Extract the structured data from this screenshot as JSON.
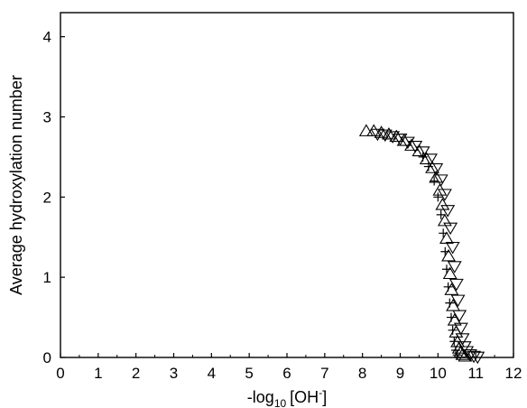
{
  "chart_data": {
    "type": "scatter",
    "title": "",
    "xlabel_parts": {
      "prefix": "-log",
      "subscript": "10",
      "bracket_open": "[OH",
      "superscript": "-",
      "bracket_close": "]"
    },
    "ylabel": "Average hydroxylation number",
    "xlim": [
      0,
      12
    ],
    "ylim": [
      0,
      4.3
    ],
    "x_ticks": [
      0,
      1,
      2,
      3,
      4,
      5,
      6,
      7,
      8,
      9,
      10,
      11,
      12
    ],
    "y_ticks": [
      0,
      1,
      2,
      3,
      4
    ],
    "grid": false,
    "legend": "none",
    "series": [
      {
        "marker": "triangle-up",
        "x": [
          8.1,
          8.3,
          8.5,
          8.7,
          8.9,
          9.1,
          9.3,
          9.5,
          9.7,
          9.85,
          9.95,
          10.05,
          10.12,
          10.18,
          10.23,
          10.28,
          10.32,
          10.36,
          10.4,
          10.44,
          10.48,
          10.52,
          10.56,
          10.6,
          10.65,
          10.72
        ],
        "y": [
          2.82,
          2.82,
          2.8,
          2.78,
          2.75,
          2.7,
          2.64,
          2.57,
          2.47,
          2.36,
          2.24,
          2.08,
          1.9,
          1.7,
          1.48,
          1.26,
          1.04,
          0.84,
          0.64,
          0.46,
          0.31,
          0.19,
          0.11,
          0.06,
          0.03,
          0.01
        ]
      },
      {
        "marker": "triangle-down",
        "x": [
          8.4,
          8.6,
          8.8,
          9.0,
          9.2,
          9.4,
          9.6,
          9.8,
          9.95,
          10.08,
          10.18,
          10.26,
          10.33,
          10.39,
          10.44,
          10.49,
          10.53,
          10.57,
          10.61,
          10.65,
          10.7,
          10.76,
          10.85,
          10.95,
          11.05
        ],
        "y": [
          2.79,
          2.78,
          2.76,
          2.73,
          2.69,
          2.64,
          2.57,
          2.48,
          2.36,
          2.22,
          2.04,
          1.84,
          1.62,
          1.38,
          1.14,
          0.92,
          0.72,
          0.53,
          0.37,
          0.24,
          0.14,
          0.08,
          0.04,
          0.02,
          0.01
        ]
      },
      {
        "marker": "plus",
        "x": [
          9.6,
          9.75,
          9.9,
          10.0,
          10.08,
          10.14,
          10.19,
          10.23,
          10.27,
          10.31,
          10.35,
          10.39,
          10.43,
          10.47,
          10.51
        ],
        "y": [
          2.5,
          2.38,
          2.2,
          2.0,
          1.78,
          1.55,
          1.32,
          1.1,
          0.88,
          0.68,
          0.5,
          0.34,
          0.2,
          0.09,
          0.03
        ]
      }
    ]
  }
}
